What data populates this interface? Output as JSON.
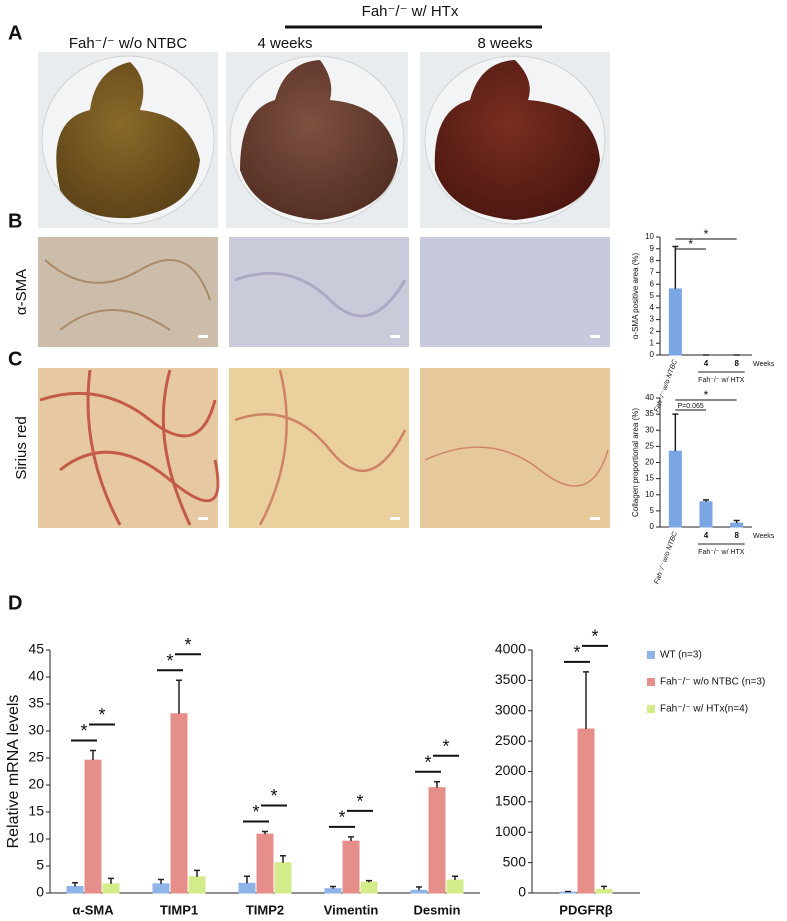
{
  "figure": {
    "panel_letters": [
      "A",
      "B",
      "C",
      "D"
    ],
    "group_header": "Fah⁻/⁻ w/ HTx",
    "column_labels": [
      "Fah⁻/⁻ w/o NTBC",
      "4 weeks",
      "8 weeks"
    ],
    "row_labels": [
      "α-SMA",
      "Sirius red"
    ]
  },
  "chart_data": [
    {
      "type": "bar",
      "y_label": "α-SMA positive area (%)",
      "categories": [
        "Fah⁻/⁻ w/o NTBC",
        "4",
        "8"
      ],
      "x_unit_label": "Weeks",
      "group_label": "Fah⁻/⁻ w/ HTX",
      "series": [
        {
          "color": "#7aa6e6",
          "values": [
            5.6,
            0,
            0
          ],
          "errors": [
            3.6,
            0,
            0
          ]
        }
      ],
      "ylim": [
        0,
        10
      ],
      "yticks": [
        0,
        1,
        2,
        3,
        4,
        5,
        6,
        7,
        8,
        9,
        10
      ],
      "significance": [
        {
          "categories": [
            0,
            1
          ],
          "label": "*"
        },
        {
          "categories": [
            0,
            2
          ],
          "label": "*"
        }
      ]
    },
    {
      "type": "bar",
      "y_label": "Collagen proportional area (%)",
      "categories": [
        "Fah⁻/⁻ w/o NTBC",
        "4",
        "8"
      ],
      "x_unit_label": "Weeks",
      "group_label": "Fah⁻/⁻ w/ HTX",
      "series": [
        {
          "color": "#7aa6e6",
          "values": [
            23.5,
            7.8,
            1.2
          ],
          "errors": [
            11.5,
            0.6,
            0.8
          ]
        }
      ],
      "ylim": [
        0,
        40
      ],
      "yticks": [
        0,
        5,
        10,
        15,
        20,
        25,
        30,
        35,
        40
      ],
      "significance": [
        {
          "categories": [
            0,
            1
          ],
          "label": "P=0.065"
        },
        {
          "categories": [
            0,
            2
          ],
          "label": "*"
        }
      ]
    },
    {
      "type": "bar",
      "y_label": "Relative mRNA  levels",
      "categories": [
        "α-SMA",
        "TIMP1",
        "TIMP2",
        "Vimentin",
        "Desmin"
      ],
      "series": [
        {
          "name": "WT (n=3)",
          "color": "#8fb4e8",
          "values": [
            1.2,
            1.7,
            1.8,
            0.8,
            0.5
          ],
          "errors": [
            0.7,
            0.8,
            1.3,
            0.4,
            0.6
          ]
        },
        {
          "name": "Fah⁻/⁻ w/o NTBC (n=3)",
          "color": "#e58e8a",
          "values": [
            24.6,
            33.2,
            10.9,
            9.6,
            19.5
          ],
          "errors": [
            1.8,
            6.2,
            0.5,
            0.8,
            1.1
          ]
        },
        {
          "name": "Fah⁻/⁻ w/ HTx(n=4)",
          "color": "#d4eb8a",
          "values": [
            1.7,
            3.0,
            5.6,
            2.0,
            2.4
          ],
          "errors": [
            1.0,
            1.2,
            1.3,
            0.3,
            0.7
          ]
        }
      ],
      "ylim": [
        0,
        45
      ],
      "yticks": [
        0,
        5,
        10,
        15,
        20,
        25,
        30,
        35,
        40,
        45
      ],
      "significance": [
        {
          "category": 0,
          "series": [
            0,
            1
          ],
          "label": "*"
        },
        {
          "category": 0,
          "series": [
            1,
            2
          ],
          "label": "*"
        },
        {
          "category": 1,
          "series": [
            0,
            1
          ],
          "label": "*"
        },
        {
          "category": 1,
          "series": [
            1,
            2
          ],
          "label": "*"
        },
        {
          "category": 2,
          "series": [
            0,
            1
          ],
          "label": "*"
        },
        {
          "category": 2,
          "series": [
            1,
            2
          ],
          "label": "*"
        },
        {
          "category": 3,
          "series": [
            0,
            1
          ],
          "label": "*"
        },
        {
          "category": 3,
          "series": [
            1,
            2
          ],
          "label": "*"
        },
        {
          "category": 4,
          "series": [
            0,
            1
          ],
          "label": "*"
        },
        {
          "category": 4,
          "series": [
            1,
            2
          ],
          "label": "*"
        }
      ]
    },
    {
      "type": "bar",
      "categories": [
        "PDGFRβ"
      ],
      "series": [
        {
          "color": "#8fb4e8",
          "values": [
            15
          ],
          "errors": [
            10
          ]
        },
        {
          "color": "#e58e8a",
          "values": [
            2700
          ],
          "errors": [
            940
          ]
        },
        {
          "color": "#d4eb8a",
          "values": [
            60
          ],
          "errors": [
            50
          ]
        }
      ],
      "ylim": [
        0,
        4000
      ],
      "yticks": [
        0,
        500,
        1000,
        1500,
        2000,
        2500,
        3000,
        3500,
        4000
      ],
      "significance": [
        {
          "category": 0,
          "series": [
            0,
            1
          ],
          "label": "*"
        },
        {
          "category": 0,
          "series": [
            1,
            2
          ],
          "label": "*"
        }
      ]
    }
  ]
}
